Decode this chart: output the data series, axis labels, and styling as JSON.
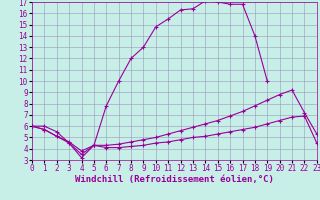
{
  "xlabel": "Windchill (Refroidissement éolien,°C)",
  "bg_color": "#c8eee8",
  "line_color": "#990099",
  "xlim": [
    0,
    23
  ],
  "ylim": [
    3,
    17
  ],
  "yticks": [
    3,
    4,
    5,
    6,
    7,
    8,
    9,
    10,
    11,
    12,
    13,
    14,
    15,
    16,
    17
  ],
  "xticks": [
    0,
    1,
    2,
    3,
    4,
    5,
    6,
    7,
    8,
    9,
    10,
    11,
    12,
    13,
    14,
    15,
    16,
    17,
    18,
    19,
    20,
    21,
    22,
    23
  ],
  "line1_x": [
    0,
    1,
    2,
    3,
    4,
    5,
    6,
    7,
    8,
    9,
    10,
    11,
    12,
    13,
    14,
    15,
    16,
    17,
    18,
    19
  ],
  "line1_y": [
    6.0,
    6.0,
    5.5,
    4.5,
    3.2,
    4.3,
    7.8,
    10.0,
    12.0,
    13.0,
    14.8,
    15.5,
    16.3,
    16.4,
    17.1,
    17.0,
    16.8,
    16.8,
    14.0,
    10.0
  ],
  "line2_x": [
    0,
    1,
    2,
    3,
    4,
    5,
    6,
    7,
    8,
    9,
    10,
    11,
    12,
    13,
    14,
    15,
    16,
    17,
    18,
    19,
    20,
    21,
    22,
    23
  ],
  "line2_y": [
    6.0,
    5.7,
    5.1,
    4.6,
    3.8,
    4.3,
    4.3,
    4.4,
    4.6,
    4.8,
    5.0,
    5.3,
    5.6,
    5.9,
    6.2,
    6.5,
    6.9,
    7.3,
    7.8,
    8.3,
    8.8,
    9.2,
    7.2,
    5.3
  ],
  "line3_x": [
    0,
    1,
    2,
    3,
    4,
    5,
    6,
    7,
    8,
    9,
    10,
    11,
    12,
    13,
    14,
    15,
    16,
    17,
    18,
    19,
    20,
    21,
    22,
    23
  ],
  "line3_y": [
    6.0,
    5.7,
    5.1,
    4.5,
    3.5,
    4.3,
    4.1,
    4.1,
    4.2,
    4.3,
    4.5,
    4.6,
    4.8,
    5.0,
    5.1,
    5.3,
    5.5,
    5.7,
    5.9,
    6.2,
    6.5,
    6.8,
    6.9,
    4.5
  ],
  "grid_color": "#9999bb",
  "tick_fontsize": 5.5,
  "xlabel_fontsize": 6.5
}
